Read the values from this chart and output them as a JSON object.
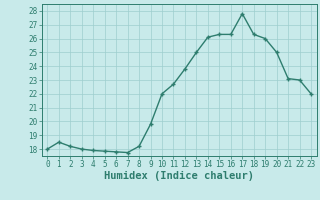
{
  "x": [
    0,
    1,
    2,
    3,
    4,
    5,
    6,
    7,
    8,
    9,
    10,
    11,
    12,
    13,
    14,
    15,
    16,
    17,
    18,
    19,
    20,
    21,
    22,
    23
  ],
  "y": [
    18.0,
    18.5,
    18.2,
    18.0,
    17.9,
    17.85,
    17.8,
    17.75,
    18.2,
    19.8,
    22.0,
    22.7,
    23.8,
    25.0,
    26.1,
    26.3,
    26.3,
    27.8,
    26.3,
    26.0,
    25.0,
    23.1,
    23.0,
    22.0
  ],
  "line_color": "#2e7d6e",
  "marker": "+",
  "marker_size": 3,
  "bg_color": "#c8eaea",
  "grid_color": "#9ecece",
  "tick_color": "#2e7d6e",
  "xlabel": "Humidex (Indice chaleur)",
  "ylim": [
    17.5,
    28.5
  ],
  "yticks": [
    18,
    19,
    20,
    21,
    22,
    23,
    24,
    25,
    26,
    27,
    28
  ],
  "xticks": [
    0,
    1,
    2,
    3,
    4,
    5,
    6,
    7,
    8,
    9,
    10,
    11,
    12,
    13,
    14,
    15,
    16,
    17,
    18,
    19,
    20,
    21,
    22,
    23
  ],
  "line_width": 1.0
}
